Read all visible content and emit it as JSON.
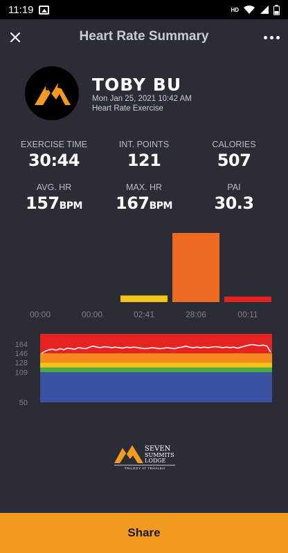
{
  "status_bar": {
    "time": "11:19",
    "network": "HD"
  },
  "header": {
    "title": "Heart Rate Summary"
  },
  "profile": {
    "name": "TOBY BU",
    "datetime": "Mon Jan 25, 2021 10:42 AM",
    "activity": "Heart Rate Exercise"
  },
  "stats": {
    "exercise_time": {
      "label": "EXERCISE TIME",
      "value": "30:44"
    },
    "int_points": {
      "label": "INT. POINTS",
      "value": "121"
    },
    "calories": {
      "label": "CALORIES",
      "value": "507"
    },
    "avg_hr": {
      "label": "AVG. HR",
      "value": "157",
      "unit": "BPM"
    },
    "max_hr": {
      "label": "MAX. HR",
      "value": "167",
      "unit": "BPM"
    },
    "pai": {
      "label": "PAI",
      "value": "30.3"
    }
  },
  "colors": {
    "background": "#2a2d35",
    "accent": "#f39a21",
    "zone_bar_3": "#f2c318",
    "zone_bar_4": "#ef6a22",
    "zone_red": "#e52421",
    "zone_orange": "#f48b21",
    "zone_yellow": "#f2c318",
    "zone_green": "#4aad3f",
    "zone_blue": "#3b52a3"
  },
  "chart_data": [
    {
      "type": "bar",
      "categories": [
        "00:00",
        "00:00",
        "02:41",
        "28:06",
        "00:11"
      ],
      "values": [
        0,
        0,
        161,
        1686,
        11
      ]
    },
    {
      "type": "line",
      "yticks": [
        164,
        146,
        128,
        109,
        50
      ],
      "ylim": [
        50,
        184
      ],
      "bands": [
        {
          "from": 50,
          "to": 109,
          "color": "#3b52a3"
        },
        {
          "from": 109,
          "to": 118,
          "color": "#4aad3f"
        },
        {
          "from": 118,
          "to": 128,
          "color": "#f2c318"
        },
        {
          "from": 128,
          "to": 146,
          "color": "#f48b21"
        },
        {
          "from": 146,
          "to": 184,
          "color": "#e52421"
        }
      ],
      "series": [
        {
          "values": [
            146,
            150,
            153,
            154,
            152,
            155,
            153,
            156,
            155,
            154,
            157,
            156,
            155,
            158,
            160,
            158,
            157,
            159,
            158,
            157,
            158,
            157,
            156,
            158,
            157,
            158,
            157,
            156,
            155,
            156,
            157,
            156,
            155,
            156,
            157,
            156,
            155,
            157,
            158,
            160,
            158,
            157,
            158,
            157,
            158,
            157,
            158,
            159,
            158,
            157,
            158,
            157,
            158,
            156,
            158,
            160,
            162,
            163,
            162,
            161,
            162,
            160,
            148
          ]
        }
      ]
    }
  ],
  "brand": {
    "line1": "SEVEN",
    "line2": "SUMMITS",
    "line3": "LODGE",
    "tagline": "TRILOGY AT TEHALEH"
  },
  "share": {
    "label": "Share"
  }
}
